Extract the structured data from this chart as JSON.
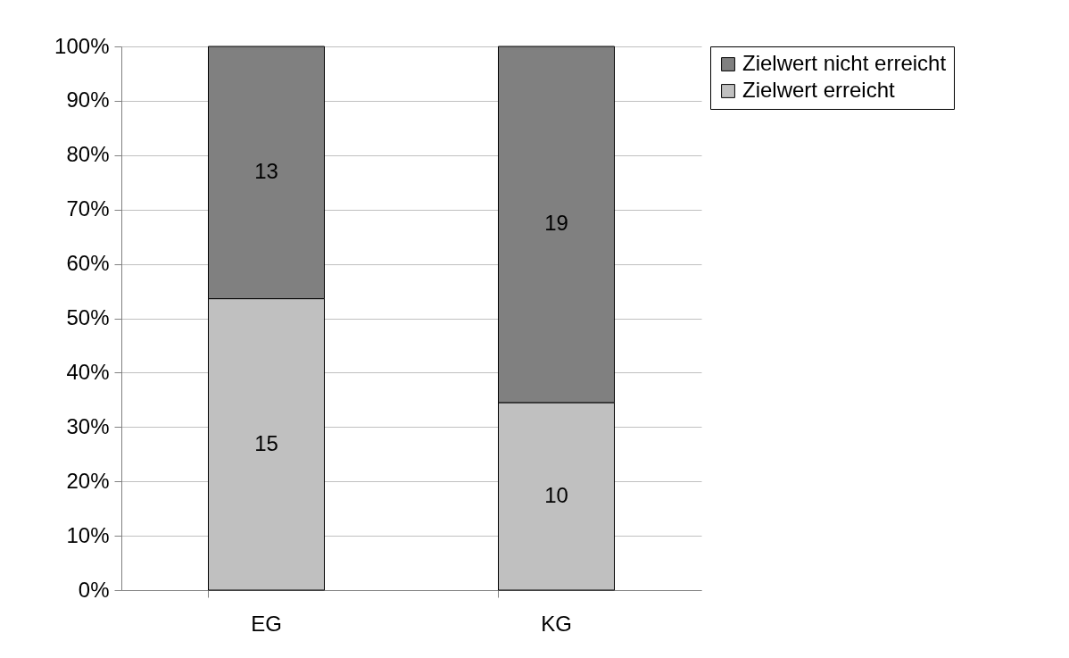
{
  "chart_data": {
    "type": "bar",
    "stacked": true,
    "categories": [
      "EG",
      "KG"
    ],
    "series": [
      {
        "name": "Zielwert erreicht",
        "color": "#c0c0c0",
        "values": [
          53.6,
          34.5
        ]
      },
      {
        "name": "Zielwert nicht erreicht",
        "color": "#808080",
        "values": [
          46.4,
          65.5
        ]
      }
    ],
    "annotations": [
      "15",
      "10",
      "13",
      "19"
    ],
    "ylim": [
      0,
      100
    ],
    "yticks": [
      {
        "value": 0,
        "label": "0%"
      },
      {
        "value": 10,
        "label": "10%"
      },
      {
        "value": 20,
        "label": "20%"
      },
      {
        "value": 30,
        "label": "30%"
      },
      {
        "value": 40,
        "label": "40%"
      },
      {
        "value": 50,
        "label": "50%"
      },
      {
        "value": 60,
        "label": "60%"
      },
      {
        "value": 70,
        "label": "70%"
      },
      {
        "value": 80,
        "label": "80%"
      },
      {
        "value": 90,
        "label": "90%"
      },
      {
        "value": 100,
        "label": "100%"
      }
    ],
    "grid": "y",
    "legend": "right"
  }
}
